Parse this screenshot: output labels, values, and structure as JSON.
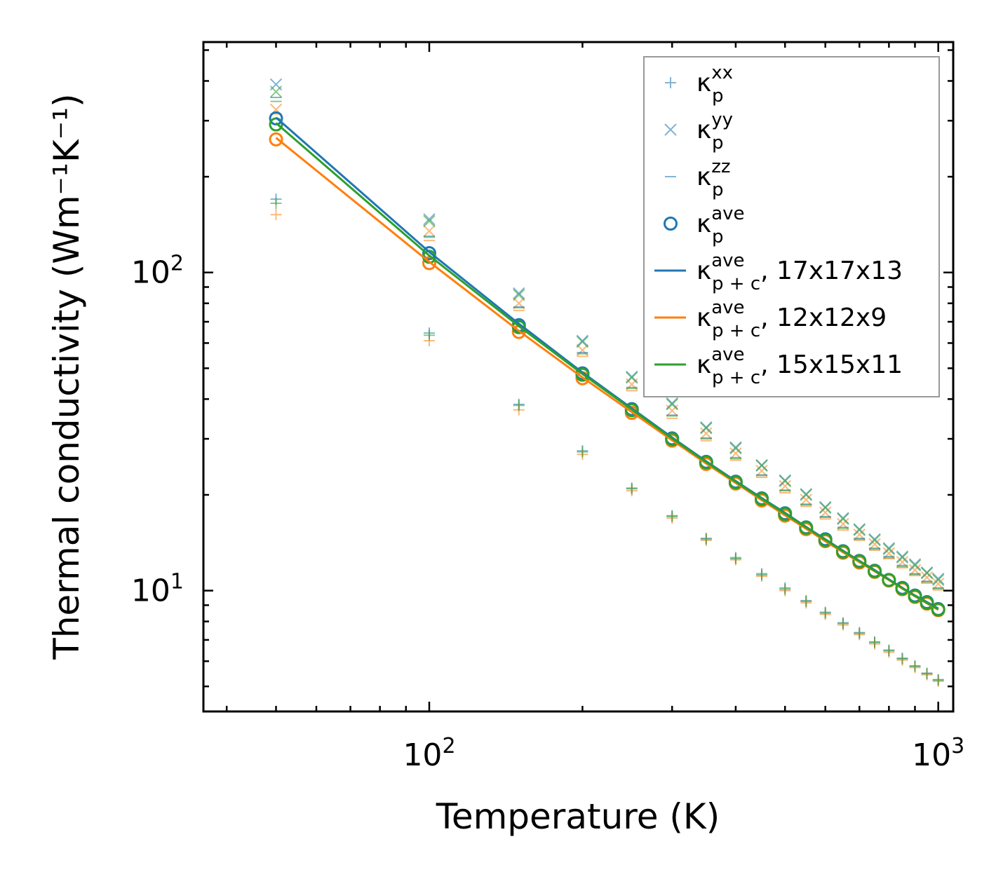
{
  "chart_data": {
    "type": "scatter+line",
    "xscale": "log",
    "yscale": "log",
    "xlabel": "Temperature (K)",
    "ylabel": "Thermal conductivity (Wm⁻¹K⁻¹)",
    "xlim": [
      36,
      1070
    ],
    "ylim": [
      4.17,
      530
    ],
    "xticks": [
      {
        "value": 100,
        "base": "10",
        "exp": "2"
      },
      {
        "value": 1000,
        "base": "10",
        "exp": "3"
      }
    ],
    "yticks": [
      {
        "value": 10,
        "base": "10",
        "exp": "1"
      },
      {
        "value": 100,
        "base": "10",
        "exp": "2"
      }
    ],
    "temperatures": [
      50,
      100,
      150,
      200,
      250,
      300,
      350,
      400,
      450,
      500,
      550,
      600,
      650,
      700,
      750,
      800,
      850,
      900,
      950,
      1000
    ],
    "colors": {
      "blue": "#1f77b4",
      "orange": "#ff7f0e",
      "green": "#2ca02c"
    },
    "series": [
      {
        "name": "kappa_p_xx",
        "marker": "plus",
        "alpha": 0.55,
        "values": {
          "blue": [
            170,
            64.5,
            38.5,
            27.5,
            21,
            17.2,
            14.6,
            12.7,
            11.3,
            10.2,
            9.3,
            8.55,
            7.92,
            7.38,
            6.9,
            6.5,
            6.13,
            5.8,
            5.5,
            5.25
          ],
          "orange": [
            152,
            61,
            37,
            26.8,
            20.6,
            16.9,
            14.4,
            12.5,
            11.1,
            10.0,
            9.15,
            8.42,
            7.8,
            7.27,
            6.8,
            6.4,
            6.05,
            5.73,
            5.44,
            5.19
          ],
          "green": [
            165,
            63.5,
            38.2,
            27.3,
            20.9,
            17.1,
            14.5,
            12.6,
            11.2,
            10.1,
            9.25,
            8.5,
            7.88,
            7.34,
            6.87,
            6.47,
            6.1,
            5.78,
            5.48,
            5.23
          ]
        }
      },
      {
        "name": "kappa_p_yy",
        "marker": "cross",
        "alpha": 0.55,
        "values": {
          "blue": [
            390,
            147,
            86,
            61,
            47,
            38.8,
            32.6,
            28.2,
            24.8,
            22.2,
            20.1,
            18.3,
            16.9,
            15.6,
            14.5,
            13.6,
            12.8,
            12.1,
            11.4,
            10.9
          ],
          "orange": [
            325,
            135,
            80,
            57,
            44.5,
            36.8,
            31.2,
            27.0,
            23.8,
            21.3,
            19.3,
            17.6,
            16.2,
            15.0,
            14.0,
            13.1,
            12.3,
            11.6,
            11.0,
            10.5
          ],
          "green": [
            370,
            145,
            85,
            60.5,
            46.7,
            38.5,
            32.4,
            28.0,
            24.7,
            22.1,
            20.0,
            18.2,
            16.8,
            15.5,
            14.4,
            13.5,
            12.7,
            12.0,
            11.35,
            10.8
          ]
        }
      },
      {
        "name": "kappa_p_zz",
        "marker": "hline",
        "alpha": 0.55,
        "values": {
          "blue": [
            355,
            130,
            78,
            56,
            43.5,
            35.6,
            30.2,
            26.2,
            23.1,
            20.7,
            18.7,
            17.1,
            15.8,
            14.6,
            13.6,
            12.8,
            12.0,
            11.3,
            10.7,
            10.2
          ],
          "orange": [
            315,
            126,
            76,
            54.5,
            42.5,
            34.8,
            29.6,
            25.7,
            22.7,
            20.3,
            18.4,
            16.8,
            15.5,
            14.4,
            13.4,
            12.6,
            11.8,
            11.15,
            10.55,
            10.05
          ],
          "green": [
            345,
            129,
            77.5,
            55.5,
            43.2,
            35.4,
            30.0,
            26.0,
            23.0,
            20.6,
            18.6,
            17.0,
            15.7,
            14.5,
            13.5,
            12.7,
            11.9,
            11.25,
            10.65,
            10.15
          ]
        }
      },
      {
        "name": "kappa_p_ave",
        "marker": "circle",
        "alpha": 1.0,
        "values": {
          "blue": [
            305,
            115,
            68.3,
            48.2,
            37.2,
            30.1,
            25.4,
            22.0,
            19.5,
            17.5,
            15.8,
            14.5,
            13.3,
            12.4,
            11.55,
            10.8,
            10.2,
            9.65,
            9.2,
            8.75
          ],
          "orange": [
            262,
            107,
            65.0,
            46.5,
            36.2,
            29.6,
            25.0,
            21.7,
            19.2,
            17.2,
            15.6,
            14.3,
            13.15,
            12.25,
            11.45,
            10.75,
            10.1,
            9.55,
            9.1,
            8.68
          ],
          "green": [
            292,
            112,
            67.3,
            47.7,
            36.9,
            29.9,
            25.3,
            21.9,
            19.4,
            17.4,
            15.75,
            14.4,
            13.25,
            12.35,
            11.5,
            10.8,
            10.15,
            9.6,
            9.15,
            8.72
          ]
        }
      },
      {
        "name": "kappa_pc_ave",
        "marker": "line",
        "values": {
          "blue": [
            307,
            116,
            69,
            48.5,
            37.4,
            30.3,
            25.5,
            22.1,
            19.55,
            17.55,
            15.85,
            14.5,
            13.35,
            12.4,
            11.6,
            10.85,
            10.2,
            9.65,
            9.2,
            8.78
          ],
          "orange": [
            265,
            108,
            65.5,
            46.8,
            36.4,
            29.7,
            25.1,
            21.8,
            19.25,
            17.25,
            15.65,
            14.3,
            13.2,
            12.3,
            11.5,
            10.8,
            10.15,
            9.6,
            9.12,
            8.7
          ],
          "green": [
            295,
            113,
            67.8,
            48.0,
            37.1,
            30.1,
            25.35,
            22.0,
            19.45,
            17.45,
            15.8,
            14.45,
            13.3,
            12.38,
            11.55,
            10.82,
            10.18,
            9.62,
            9.16,
            8.74
          ]
        }
      }
    ],
    "legend": {
      "position": "top-right",
      "entries": [
        {
          "marker": "plus",
          "color": "blue",
          "alpha": 0.55,
          "base": "κ",
          "sup": "xx",
          "sub": "p",
          "suffix": ""
        },
        {
          "marker": "cross",
          "color": "blue",
          "alpha": 0.55,
          "base": "κ",
          "sup": "yy",
          "sub": "p",
          "suffix": ""
        },
        {
          "marker": "hline",
          "color": "blue",
          "alpha": 0.55,
          "base": "κ",
          "sup": "zz",
          "sub": "p",
          "suffix": ""
        },
        {
          "marker": "circle",
          "color": "blue",
          "alpha": 1.0,
          "base": "κ",
          "sup": "ave",
          "sub": "p",
          "suffix": ""
        },
        {
          "marker": "line",
          "color": "blue",
          "alpha": 1.0,
          "base": "κ",
          "sup": "ave",
          "sub": "p + c",
          "suffix": ", 17x17x13"
        },
        {
          "marker": "line",
          "color": "orange",
          "alpha": 1.0,
          "base": "κ",
          "sup": "ave",
          "sub": "p + c",
          "suffix": ", 12x12x9"
        },
        {
          "marker": "line",
          "color": "green",
          "alpha": 1.0,
          "base": "κ",
          "sup": "ave",
          "sub": "p + c",
          "suffix": ", 15x15x11"
        }
      ]
    }
  }
}
